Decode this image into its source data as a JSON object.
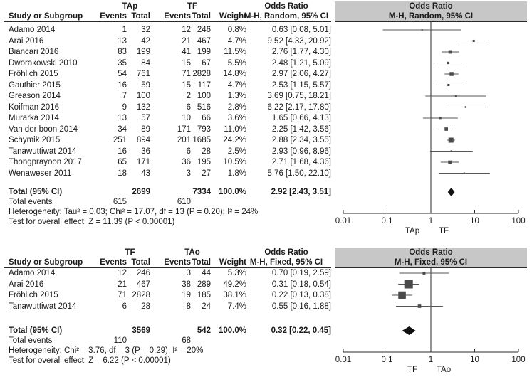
{
  "chart_data": [
    {
      "type": "forest",
      "group_labels": {
        "experimental": "TAp",
        "control": "TF"
      },
      "headers": {
        "study": "Study or Subgroup",
        "events": "Events",
        "total": "Total",
        "weight": "Weight",
        "or_title": "Odds Ratio",
        "or_method": "M-H, Random, 95% CI",
        "plot_title": "Odds Ratio",
        "plot_method": "M-H, Random, 95% CI"
      },
      "studies": [
        {
          "study": "Adamo 2014",
          "e_events": "1",
          "e_total": "32",
          "c_events": "12",
          "c_total": "246",
          "weight": "0.8%",
          "ci_text": "0.63 [0.08, 5.01]",
          "or": 0.63,
          "lo": 0.08,
          "hi": 5.01,
          "w": 0.8
        },
        {
          "study": "Arai 2016",
          "e_events": "13",
          "e_total": "42",
          "c_events": "21",
          "c_total": "467",
          "weight": "4.7%",
          "ci_text": "9.52 [4.33, 20.92]",
          "or": 9.52,
          "lo": 4.33,
          "hi": 20.92,
          "w": 4.7
        },
        {
          "study": "Biancari 2016",
          "e_events": "83",
          "e_total": "199",
          "c_events": "41",
          "c_total": "199",
          "weight": "11.5%",
          "ci_text": "2.76 [1.77, 4.30]",
          "or": 2.76,
          "lo": 1.77,
          "hi": 4.3,
          "w": 11.5
        },
        {
          "study": "Dworakowski 2010",
          "e_events": "35",
          "e_total": "84",
          "c_events": "15",
          "c_total": "67",
          "weight": "5.5%",
          "ci_text": "2.48 [1.21, 5.09]",
          "or": 2.48,
          "lo": 1.21,
          "hi": 5.09,
          "w": 5.5
        },
        {
          "study": "Fröhlich 2015",
          "e_events": "54",
          "e_total": "761",
          "c_events": "71",
          "c_total": "2828",
          "weight": "14.8%",
          "ci_text": "2.97 [2.06, 4.27]",
          "or": 2.97,
          "lo": 2.06,
          "hi": 4.27,
          "w": 14.8
        },
        {
          "study": "Gauthier 2015",
          "e_events": "16",
          "e_total": "59",
          "c_events": "15",
          "c_total": "117",
          "weight": "4.7%",
          "ci_text": "2.53 [1.15, 5.57]",
          "or": 2.53,
          "lo": 1.15,
          "hi": 5.57,
          "w": 4.7
        },
        {
          "study": "Greason 2014",
          "e_events": "7",
          "e_total": "100",
          "c_events": "2",
          "c_total": "100",
          "weight": "1.3%",
          "ci_text": "3.69 [0.75, 18.21]",
          "or": 3.69,
          "lo": 0.75,
          "hi": 18.21,
          "w": 1.3
        },
        {
          "study": "Koifman 2016",
          "e_events": "9",
          "e_total": "132",
          "c_events": "6",
          "c_total": "516",
          "weight": "2.8%",
          "ci_text": "6.22 [2.17, 17.80]",
          "or": 6.22,
          "lo": 2.17,
          "hi": 17.8,
          "w": 2.8
        },
        {
          "study": "Murarka 2014",
          "e_events": "13",
          "e_total": "57",
          "c_events": "10",
          "c_total": "66",
          "weight": "3.6%",
          "ci_text": "1.65 [0.66, 4.13]",
          "or": 1.65,
          "lo": 0.66,
          "hi": 4.13,
          "w": 3.6
        },
        {
          "study": "Van der boon 2014",
          "e_events": "34",
          "e_total": "89",
          "c_events": "171",
          "c_total": "793",
          "weight": "11.0%",
          "ci_text": "2.25 [1.42, 3.56]",
          "or": 2.25,
          "lo": 1.42,
          "hi": 3.56,
          "w": 11.0
        },
        {
          "study": "Schymik 2015",
          "e_events": "251",
          "e_total": "894",
          "c_events": "201",
          "c_total": "1685",
          "weight": "24.2%",
          "ci_text": "2.88 [2.34, 3.55]",
          "or": 2.88,
          "lo": 2.34,
          "hi": 3.55,
          "w": 24.2
        },
        {
          "study": "Tanawuttiwat 2014",
          "e_events": "16",
          "e_total": "36",
          "c_events": "6",
          "c_total": "28",
          "weight": "2.5%",
          "ci_text": "2.93 [0.96, 8.96]",
          "or": 2.93,
          "lo": 0.96,
          "hi": 8.96,
          "w": 2.5
        },
        {
          "study": "Thongprayoon 2017",
          "e_events": "65",
          "e_total": "171",
          "c_events": "36",
          "c_total": "195",
          "weight": "10.5%",
          "ci_text": "2.71 [1.68, 4.36]",
          "or": 2.71,
          "lo": 1.68,
          "hi": 4.36,
          "w": 10.5
        },
        {
          "study": "Wenaweser 2011",
          "e_events": "18",
          "e_total": "43",
          "c_events": "3",
          "c_total": "27",
          "weight": "1.8%",
          "ci_text": "5.76 [1.50, 22.10]",
          "or": 5.76,
          "lo": 1.5,
          "hi": 22.1,
          "w": 1.8
        }
      ],
      "total": {
        "label": "Total (95% CI)",
        "e_total": "2699",
        "c_total": "7334",
        "weight": "100.0%",
        "ci_text": "2.92 [2.43, 3.51]",
        "or": 2.92,
        "lo": 2.43,
        "hi": 3.51
      },
      "total_events": {
        "label": "Total events",
        "e_events": "615",
        "c_events": "610"
      },
      "heterogeneity": "Heterogeneity: Tau² = 0.03; Chi² = 17.07, df = 13 (P = 0.20); I² = 24%",
      "overall_effect": "Test for overall effect: Z = 11.39 (P < 0.00001)",
      "axis": {
        "scale": "log",
        "xlim": [
          0.01,
          100
        ],
        "ticks": [
          0.01,
          0.1,
          1,
          10,
          100
        ],
        "tick_labels": [
          "0.01",
          "0.1",
          "1",
          "10",
          "100"
        ],
        "left_label": "TAp",
        "right_label": "TF"
      }
    },
    {
      "type": "forest",
      "group_labels": {
        "experimental": "TF",
        "control": "TAo"
      },
      "headers": {
        "study": "Study or Subgroup",
        "events": "Events",
        "total": "Total",
        "weight": "Weight",
        "or_title": "Odds Ratio",
        "or_method": "M-H, Fixed, 95% CI",
        "plot_title": "Odds Ratio",
        "plot_method": "M-H, Fixed, 95% CI"
      },
      "studies": [
        {
          "study": "Adamo 2014",
          "e_events": "12",
          "e_total": "246",
          "c_events": "3",
          "c_total": "44",
          "weight": "5.3%",
          "ci_text": "0.70 [0.19, 2.59]",
          "or": 0.7,
          "lo": 0.19,
          "hi": 2.59,
          "w": 5.3
        },
        {
          "study": "Arai 2016",
          "e_events": "21",
          "e_total": "467",
          "c_events": "38",
          "c_total": "289",
          "weight": "49.2%",
          "ci_text": "0.31 [0.18, 0.54]",
          "or": 0.31,
          "lo": 0.18,
          "hi": 0.54,
          "w": 49.2
        },
        {
          "study": "Fröhlich 2015",
          "e_events": "71",
          "e_total": "2828",
          "c_events": "19",
          "c_total": "185",
          "weight": "38.1%",
          "ci_text": "0.22 [0.13, 0.38]",
          "or": 0.22,
          "lo": 0.13,
          "hi": 0.38,
          "w": 38.1
        },
        {
          "study": "Tanawuttiwat 2014",
          "e_events": "6",
          "e_total": "28",
          "c_events": "8",
          "c_total": "24",
          "weight": "7.4%",
          "ci_text": "0.55 [0.16, 1.88]",
          "or": 0.55,
          "lo": 0.16,
          "hi": 1.88,
          "w": 7.4
        }
      ],
      "total": {
        "label": "Total (95% CI)",
        "e_total": "3569",
        "c_total": "542",
        "weight": "100.0%",
        "ci_text": "0.32 [0.22, 0.45]",
        "or": 0.32,
        "lo": 0.22,
        "hi": 0.45
      },
      "total_events": {
        "label": "Total events",
        "e_events": "110",
        "c_events": "68"
      },
      "heterogeneity": "Heterogeneity: Chi² = 3.76, df = 3 (P = 0.29); I² = 20%",
      "overall_effect": "Test for overall effect: Z = 6.22 (P < 0.00001)",
      "axis": {
        "scale": "log",
        "xlim": [
          0.01,
          100
        ],
        "ticks": [
          0.01,
          0.1,
          1,
          10,
          100
        ],
        "tick_labels": [
          "0.01",
          "0.1",
          "1",
          "10",
          "100"
        ],
        "left_label": "TF",
        "right_label": "TAo"
      }
    }
  ],
  "colors": {
    "grey_header": "#c7c7c7",
    "text": "#1a1a1a",
    "marker": "#4a4a4a",
    "line": "#2a2a2a"
  }
}
